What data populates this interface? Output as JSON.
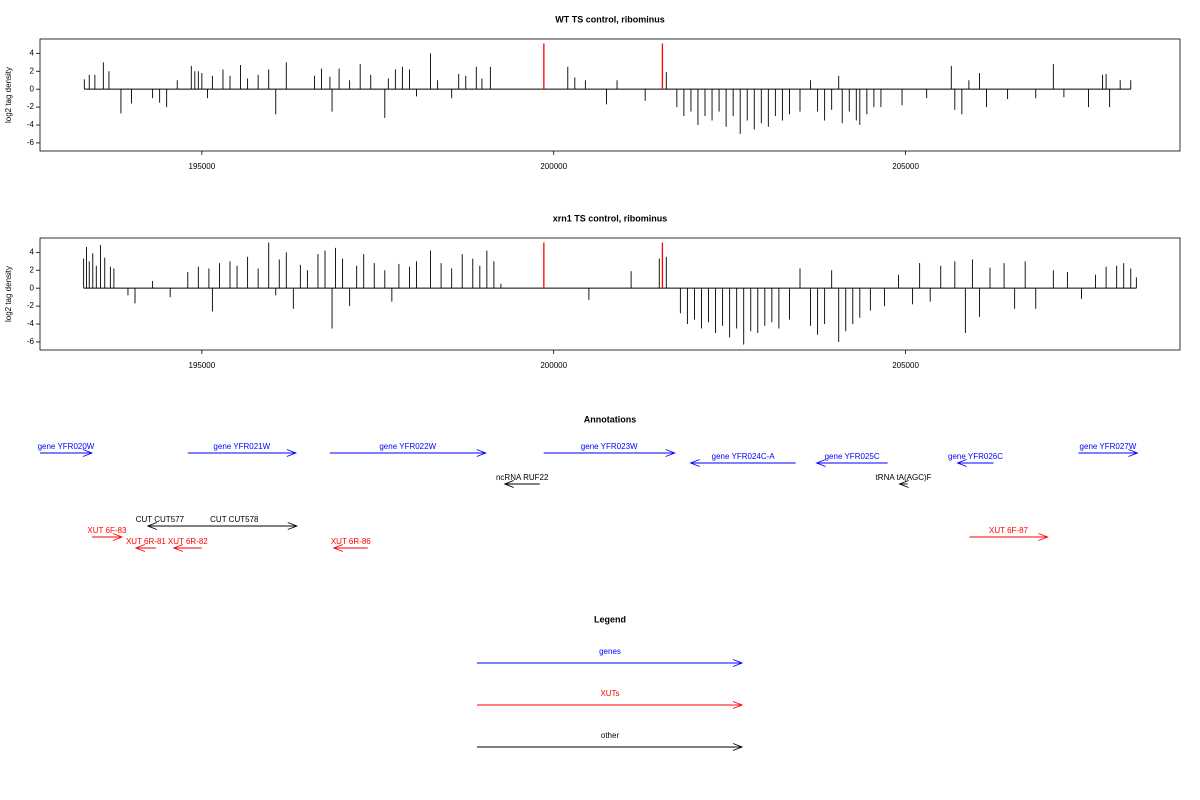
{
  "chart_data": [
    {
      "type": "spike",
      "title": "WT TS control, ribominus",
      "ylabel": "log2 tag density",
      "xlim": [
        192700,
        208900
      ],
      "ylim": [
        -6.9,
        5.6
      ],
      "xticks": [
        195000,
        200000,
        205000
      ],
      "yticks": [
        -6,
        -4,
        -2,
        0,
        2,
        4
      ],
      "series": [
        {
          "color": "#000000",
          "x": [
            193330,
            193400,
            193480,
            193600,
            193680,
            193850,
            194000,
            194300,
            194400,
            194500,
            194650,
            194850,
            194900,
            194950,
            195000,
            195080,
            195150,
            195300,
            195400,
            195550,
            195650,
            195800,
            195950,
            196050,
            196200,
            196600,
            196700,
            196820,
            196850,
            196950,
            197100,
            197250,
            197400,
            197600,
            197650,
            197750,
            197850,
            197950,
            198050,
            198250,
            198350,
            198550,
            198650,
            198750,
            198900,
            198980,
            199100,
            200200,
            200300,
            200450,
            200750,
            200900,
            201300,
            201600,
            201750,
            201850,
            201950,
            202050,
            202150,
            202250,
            202350,
            202450,
            202550,
            202650,
            202750,
            202850,
            202950,
            203050,
            203150,
            203250,
            203350,
            203500,
            203650,
            203750,
            203850,
            203950,
            204050,
            204100,
            204200,
            204300,
            204350,
            204450,
            204550,
            204650,
            204950,
            205300,
            205650,
            205700,
            205800,
            205900,
            206050,
            206150,
            206450,
            206850,
            207100,
            207250,
            207600,
            207800,
            207850,
            207900,
            208050,
            208200
          ],
          "values": [
            1.1,
            1.6,
            1.6,
            3.0,
            2.0,
            -2.7,
            -1.6,
            -1.0,
            -1.5,
            -2.0,
            1.0,
            2.6,
            2.0,
            2.0,
            1.8,
            -1.0,
            1.5,
            2.2,
            1.5,
            2.7,
            1.2,
            1.6,
            2.2,
            -2.8,
            3.0,
            1.5,
            2.3,
            1.4,
            -2.5,
            2.3,
            1.0,
            2.8,
            1.6,
            -3.2,
            1.2,
            2.2,
            2.5,
            2.2,
            -0.8,
            4.0,
            1.0,
            -1.0,
            1.7,
            1.5,
            2.5,
            1.2,
            2.5,
            2.5,
            1.3,
            1.0,
            -1.7,
            1.0,
            -1.3,
            1.9,
            -2.0,
            -3.0,
            -2.5,
            -4.0,
            -3.0,
            -3.5,
            -2.5,
            -4.2,
            -3.0,
            -5.0,
            -3.5,
            -4.5,
            -3.8,
            -4.2,
            -3.0,
            -3.5,
            -2.8,
            -2.5,
            1.0,
            -2.5,
            -3.5,
            -2.3,
            1.5,
            -3.8,
            -2.5,
            -3.5,
            -4.0,
            -2.8,
            -2.0,
            -2.0,
            -1.8,
            -1.0,
            2.6,
            -2.3,
            -2.8,
            1.0,
            1.8,
            -2.0,
            -1.1,
            -1.0,
            2.8,
            -0.9,
            -2.0,
            1.6,
            1.7,
            -2.0,
            1.0,
            1.0
          ]
        },
        {
          "color": "#ff0000",
          "x": [
            199860,
            201545
          ],
          "values": [
            5.1,
            5.1
          ]
        }
      ]
    },
    {
      "type": "spike",
      "title": "xrn1 TS control, ribominus",
      "ylabel": "log2 tag density",
      "xlim": [
        192700,
        208900
      ],
      "ylim": [
        -6.9,
        5.6
      ],
      "xticks": [
        195000,
        200000,
        205000
      ],
      "yticks": [
        -6,
        -4,
        -2,
        0,
        2,
        4
      ],
      "series": [
        {
          "color": "#000000",
          "x": [
            193320,
            193360,
            193400,
            193450,
            193500,
            193560,
            193620,
            193700,
            193750,
            193950,
            194050,
            194300,
            194550,
            194800,
            194950,
            195100,
            195150,
            195250,
            195400,
            195500,
            195650,
            195800,
            195950,
            196050,
            196100,
            196200,
            196300,
            196400,
            196500,
            196650,
            196750,
            196850,
            196900,
            197000,
            197100,
            197200,
            197300,
            197450,
            197600,
            197700,
            197800,
            197950,
            198050,
            198250,
            198400,
            198550,
            198700,
            198850,
            198950,
            199050,
            199150,
            199250,
            200500,
            201100,
            201500,
            201600,
            201800,
            201900,
            202000,
            202100,
            202200,
            202300,
            202400,
            202500,
            202600,
            202700,
            202800,
            202900,
            203000,
            203100,
            203200,
            203350,
            203500,
            203650,
            203750,
            203850,
            203950,
            204050,
            204150,
            204250,
            204350,
            204500,
            204700,
            204900,
            205100,
            205200,
            205350,
            205500,
            205700,
            205850,
            205950,
            206050,
            206200,
            206400,
            206550,
            206700,
            206850,
            207100,
            207300,
            207500,
            207700,
            207850,
            208000,
            208100,
            208200,
            208280
          ],
          "values": [
            3.3,
            4.6,
            3.0,
            3.9,
            2.5,
            4.8,
            3.4,
            2.4,
            2.2,
            -0.8,
            -1.7,
            0.8,
            -1.0,
            1.8,
            2.4,
            2.2,
            -2.6,
            2.8,
            3.0,
            2.5,
            3.5,
            2.2,
            5.1,
            -0.8,
            3.2,
            4.0,
            -2.3,
            2.6,
            2.0,
            3.8,
            4.2,
            -4.5,
            4.5,
            3.3,
            -2.0,
            2.5,
            3.8,
            2.8,
            2.0,
            -1.5,
            2.7,
            2.4,
            3.0,
            4.2,
            2.8,
            2.2,
            3.8,
            3.3,
            2.5,
            4.2,
            3.0,
            0.5,
            -1.3,
            1.9,
            3.3,
            3.5,
            -2.8,
            -4.0,
            -3.5,
            -4.5,
            -3.8,
            -5.0,
            -4.2,
            -5.5,
            -4.5,
            -6.3,
            -4.8,
            -5.0,
            -4.2,
            -3.8,
            -4.5,
            -3.5,
            2.2,
            -4.2,
            -5.2,
            -4.0,
            2.0,
            -6.0,
            -4.8,
            -4.0,
            -3.3,
            -2.5,
            -2.0,
            1.5,
            -1.8,
            2.8,
            -1.5,
            2.5,
            3.0,
            -5.0,
            3.2,
            -3.2,
            2.3,
            2.8,
            -2.3,
            3.0,
            -2.3,
            2.0,
            1.8,
            -1.2,
            1.5,
            2.4,
            2.5,
            2.8,
            2.2,
            1.2
          ]
        },
        {
          "color": "#ff0000",
          "x": [
            199860,
            201545
          ],
          "values": [
            5.1,
            5.1
          ]
        }
      ]
    }
  ],
  "annotations": {
    "title": "Annotations",
    "tracks": [
      {
        "color": "#0000ff",
        "features": [
          {
            "label": "gene YFR020W",
            "start": 192700,
            "end": 193438,
            "strand": "+"
          },
          {
            "label": "gene YFR021W",
            "start": 194801,
            "end": 196335,
            "strand": "+"
          },
          {
            "label": "gene YFR022W",
            "start": 196818,
            "end": 199034,
            "strand": "+"
          },
          {
            "label": "gene YFR023W",
            "start": 199858,
            "end": 201719,
            "strand": "+"
          },
          {
            "label": "gene YFR027W",
            "start": 207457,
            "end": 208295,
            "strand": "+"
          }
        ]
      },
      {
        "color": "#0000ff",
        "features": [
          {
            "label": "gene YFR024C-A",
            "start": 201946,
            "end": 203438,
            "strand": "-"
          },
          {
            "label": "gene YFR025C",
            "start": 203736,
            "end": 204745,
            "strand": "-"
          },
          {
            "label": "gene YFR026C",
            "start": 205739,
            "end": 206250,
            "strand": "-"
          }
        ]
      },
      {
        "color": "#000000",
        "features": [
          {
            "label": "ncRNA RUF22",
            "start": 199304,
            "end": 199801,
            "strand": "-"
          },
          {
            "label": "tRNA tA(AGC)F",
            "start": 204915,
            "end": 205029,
            "strand": "-"
          }
        ]
      },
      {
        "color": "#000000",
        "features": [
          {
            "label": "CUT CUT577",
            "start": 194233,
            "end": 194574,
            "strand": "-"
          },
          {
            "label": "CUT CUT578",
            "start": 194574,
            "end": 196349,
            "strand": "+"
          }
        ]
      },
      {
        "color": "#ff0000",
        "features": [
          {
            "label": "XUT 6F-83",
            "start": 193438,
            "end": 193864,
            "strand": "+"
          },
          {
            "label": "XUT 6F-87",
            "start": 205909,
            "end": 207017,
            "strand": "+"
          }
        ]
      },
      {
        "color": "#ff0000",
        "features": [
          {
            "label": "XUT 6R-81",
            "start": 194063,
            "end": 194347,
            "strand": "-"
          },
          {
            "label": "XUT 6R-82",
            "start": 194602,
            "end": 194999,
            "strand": "-"
          },
          {
            "label": "XUT 6R-86",
            "start": 196875,
            "end": 197358,
            "strand": "-"
          }
        ]
      }
    ]
  },
  "legend": {
    "title": "Legend",
    "entries": [
      {
        "label": "genes",
        "color": "#0000ff"
      },
      {
        "label": "XUTs",
        "color": "#ff0000"
      },
      {
        "label": "other",
        "color": "#000000"
      }
    ]
  }
}
